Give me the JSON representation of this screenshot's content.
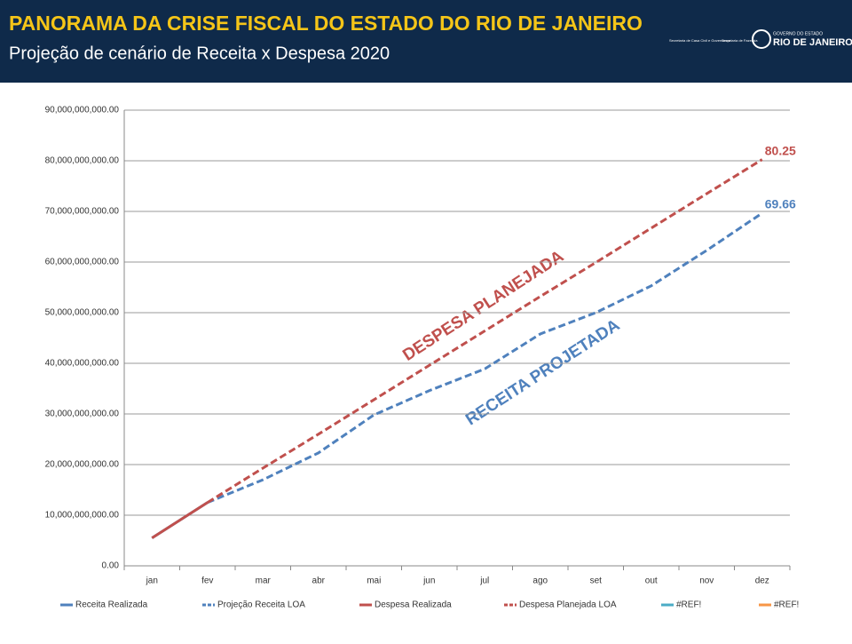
{
  "header": {
    "title": "PANORAMA DA CRISE FISCAL DO ESTADO DO RIO DE JANEIRO",
    "subtitle": "Projeção de cenário de Receita x Despesa 2020",
    "logos": [
      "Secretaria de Casa Civil e Governança",
      "Secretaria de Fazenda",
      "GOVERNO DO ESTADO",
      "RIO DE JANEIRO"
    ]
  },
  "chart_data": {
    "type": "line",
    "categories": [
      "jan",
      "fev",
      "mar",
      "abr",
      "mai",
      "jun",
      "jul",
      "ago",
      "set",
      "out",
      "nov",
      "dez"
    ],
    "ylim": [
      0,
      90000000000
    ],
    "yticks": [
      {
        "value": 0,
        "label": "0.00"
      },
      {
        "value": 10000000000,
        "label": "10,000,000,000.00"
      },
      {
        "value": 20000000000,
        "label": "20,000,000,000.00"
      },
      {
        "value": 30000000000,
        "label": "30,000,000,000.00"
      },
      {
        "value": 40000000000,
        "label": "40,000,000,000.00"
      },
      {
        "value": 50000000000,
        "label": "50,000,000,000.00"
      },
      {
        "value": 60000000000,
        "label": "60,000,000,000.00"
      },
      {
        "value": 70000000000,
        "label": "70,000,000,000.00"
      },
      {
        "value": 80000000000,
        "label": "80,000,000,000.00"
      },
      {
        "value": 90000000000,
        "label": "90,000,000,000.00"
      }
    ],
    "grid": true,
    "series": [
      {
        "name": "Receita Realizada",
        "color": "#4f81bd",
        "dash": false,
        "values": [
          5500000000,
          12500000000,
          null,
          null,
          null,
          null,
          null,
          null,
          null,
          null,
          null,
          null
        ]
      },
      {
        "name": "Projeção Receita LOA",
        "color": "#4f81bd",
        "dash": true,
        "values": [
          null,
          12500000000,
          17000000000,
          22300000000,
          29800000000,
          34600000000,
          38900000000,
          45800000000,
          50000000000,
          55300000000,
          62300000000,
          69660000000
        ],
        "value_labels": [
          null,
          null,
          null,
          null,
          null,
          null,
          null,
          null,
          null,
          null,
          null,
          "69.66"
        ]
      },
      {
        "name": "Despesa Realizada",
        "color": "#c0504d",
        "dash": false,
        "values": [
          5500000000,
          12500000000,
          null,
          null,
          null,
          null,
          null,
          null,
          null,
          null,
          null,
          null
        ]
      },
      {
        "name": "Despesa Planejada LOA",
        "color": "#c0504d",
        "dash": true,
        "values": [
          null,
          12500000000,
          19300000000,
          26000000000,
          32800000000,
          39600000000,
          46400000000,
          53200000000,
          59900000000,
          66700000000,
          73500000000,
          80250000000
        ],
        "value_labels": [
          null,
          null,
          null,
          null,
          null,
          null,
          null,
          null,
          null,
          null,
          null,
          "80.25"
        ]
      },
      {
        "name": "#REF!",
        "color": "#4bacc6",
        "dash": false,
        "values": [
          null,
          null,
          null,
          null,
          null,
          null,
          null,
          null,
          null,
          null,
          null,
          null
        ]
      },
      {
        "name": "#REF!",
        "color": "#f79646",
        "dash": false,
        "values": [
          null,
          null,
          null,
          null,
          null,
          null,
          null,
          null,
          null,
          null,
          null,
          null
        ]
      }
    ],
    "annotations": [
      "DESPESA PLANEJADA",
      "RECEITA PROJETADA"
    ]
  }
}
